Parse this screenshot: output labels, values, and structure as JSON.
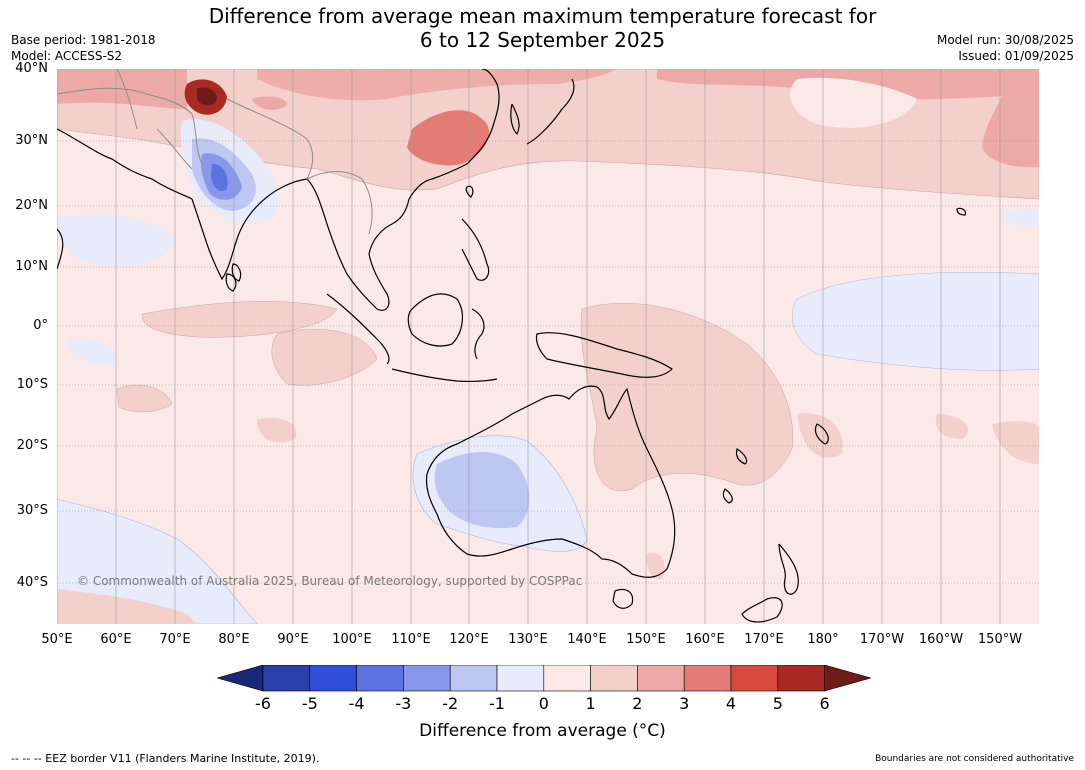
{
  "title": {
    "line1": "Difference from average mean maximum temperature forecast for",
    "line2": "6 to 12 September 2025"
  },
  "meta_left": {
    "base_period": "Base period: 1981-2018",
    "model": "Model: ACCESS-S2"
  },
  "meta_right": {
    "model_run": "Model run: 30/08/2025",
    "issued": "Issued: 01/09/2025"
  },
  "lat_labels": [
    "40°N",
    "30°N",
    "20°N",
    "10°N",
    "0°",
    "10°S",
    "20°S",
    "30°S",
    "40°S"
  ],
  "lon_labels": [
    "50°E",
    "60°E",
    "70°E",
    "80°E",
    "90°E",
    "100°E",
    "110°E",
    "120°E",
    "130°E",
    "140°E",
    "150°E",
    "160°E",
    "170°E",
    "180°",
    "170°W",
    "160°W",
    "150°W"
  ],
  "copyright": "© Commonwealth of Australia 2025, Bureau of Meteorology, supported by COSPPac",
  "colorbar": {
    "ticks": [
      "-6",
      "-5",
      "-4",
      "-3",
      "-2",
      "-1",
      "0",
      "1",
      "2",
      "3",
      "4",
      "5",
      "6"
    ],
    "colors": [
      "#1a2878",
      "#2a3faa",
      "#3050dc",
      "#5a72e2",
      "#8797ea",
      "#bec6f2",
      "#e8ebfa",
      "#fbe9e7",
      "#f4d0cc",
      "#eca9a5",
      "#e47c75",
      "#d84940",
      "#a82a22",
      "#6e1c18"
    ],
    "label": "Difference from average ($^\\circ$C)",
    "label_display": "Difference from average (°C)"
  },
  "eez_note": "--  --  -- EEZ border V11 (Flanders Marine Institute, 2019).",
  "boundary_note": "Boundaries are not considered authoritative"
}
